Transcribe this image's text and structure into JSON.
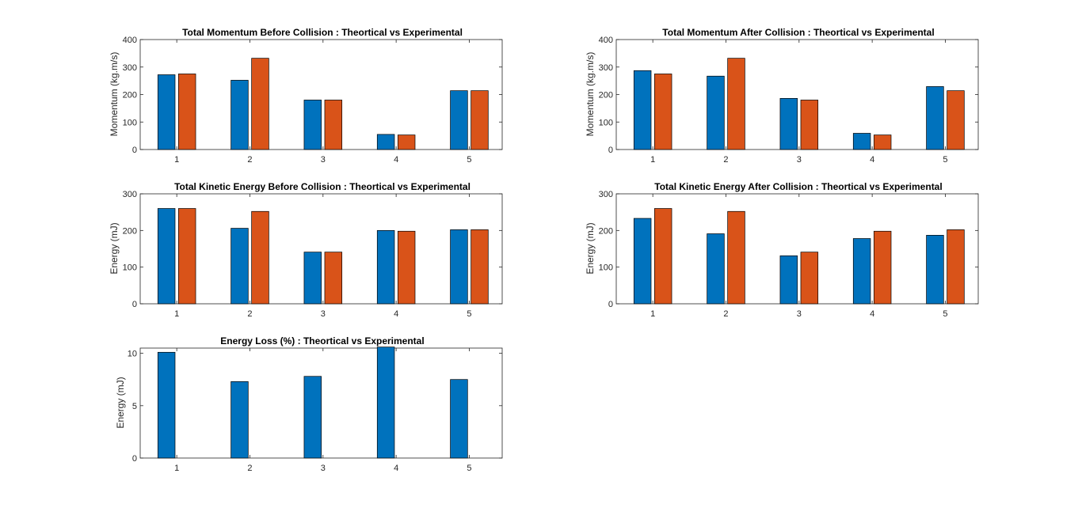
{
  "colors": {
    "theoretical": "#0072BD",
    "experimental": "#D95319",
    "axes": "#262626",
    "bar_edge": "#000000"
  },
  "chart_data": [
    {
      "type": "bar",
      "title": "Total Momentum Before Collision : Theortical vs Experimental",
      "xlabel": "",
      "ylabel": "Momentum (kg.m/s)",
      "categories": [
        "1",
        "2",
        "3",
        "4",
        "5"
      ],
      "ylim": [
        0,
        400
      ],
      "yticks": [
        0,
        100,
        200,
        300,
        400
      ],
      "grid": false,
      "series": [
        {
          "values": [
            272,
            252,
            180,
            55,
            214
          ]
        },
        {
          "values": [
            275,
            332,
            180,
            53,
            214
          ]
        }
      ]
    },
    {
      "type": "bar",
      "title": "Total Momentum After Collision : Theortical vs Experimental",
      "xlabel": "",
      "ylabel": "Momentum (kg.m/s)",
      "categories": [
        "1",
        "2",
        "3",
        "4",
        "5"
      ],
      "ylim": [
        0,
        400
      ],
      "yticks": [
        0,
        100,
        200,
        300,
        400
      ],
      "grid": false,
      "series": [
        {
          "values": [
            287,
            267,
            186,
            59,
            229
          ]
        },
        {
          "values": [
            275,
            332,
            180,
            53,
            214
          ]
        }
      ]
    },
    {
      "type": "bar",
      "title": "Total Kinetic Energy Before Collision : Theortical vs Experimental",
      "xlabel": "",
      "ylabel": "Energy (mJ)",
      "categories": [
        "1",
        "2",
        "3",
        "4",
        "5"
      ],
      "ylim": [
        0,
        300
      ],
      "yticks": [
        0,
        100,
        200,
        300
      ],
      "grid": false,
      "series": [
        {
          "values": [
            260,
            206,
            141,
            200,
            202
          ]
        },
        {
          "values": [
            260,
            252,
            141,
            198,
            202
          ]
        }
      ]
    },
    {
      "type": "bar",
      "title": "Total Kinetic Energy After Collision : Theortical vs Experimental",
      "xlabel": "",
      "ylabel": "Energy (mJ)",
      "categories": [
        "1",
        "2",
        "3",
        "4",
        "5"
      ],
      "ylim": [
        0,
        300
      ],
      "yticks": [
        0,
        100,
        200,
        300
      ],
      "grid": false,
      "series": [
        {
          "values": [
            233,
            191,
            131,
            178,
            187
          ]
        },
        {
          "values": [
            260,
            252,
            141,
            198,
            202
          ]
        }
      ]
    },
    {
      "type": "bar",
      "title": "Energy Loss (%) : Theortical vs Experimental",
      "xlabel": "",
      "ylabel": "Energy (mJ)",
      "categories": [
        "1",
        "2",
        "3",
        "4",
        "5"
      ],
      "ylim": [
        0,
        10.5
      ],
      "yticks": [
        0,
        5,
        10
      ],
      "grid": false,
      "series": [
        {
          "values": [
            10.1,
            7.3,
            7.8,
            10.6,
            7.5
          ]
        },
        {
          "values": [
            0,
            0,
            0,
            0,
            0
          ]
        }
      ]
    }
  ]
}
